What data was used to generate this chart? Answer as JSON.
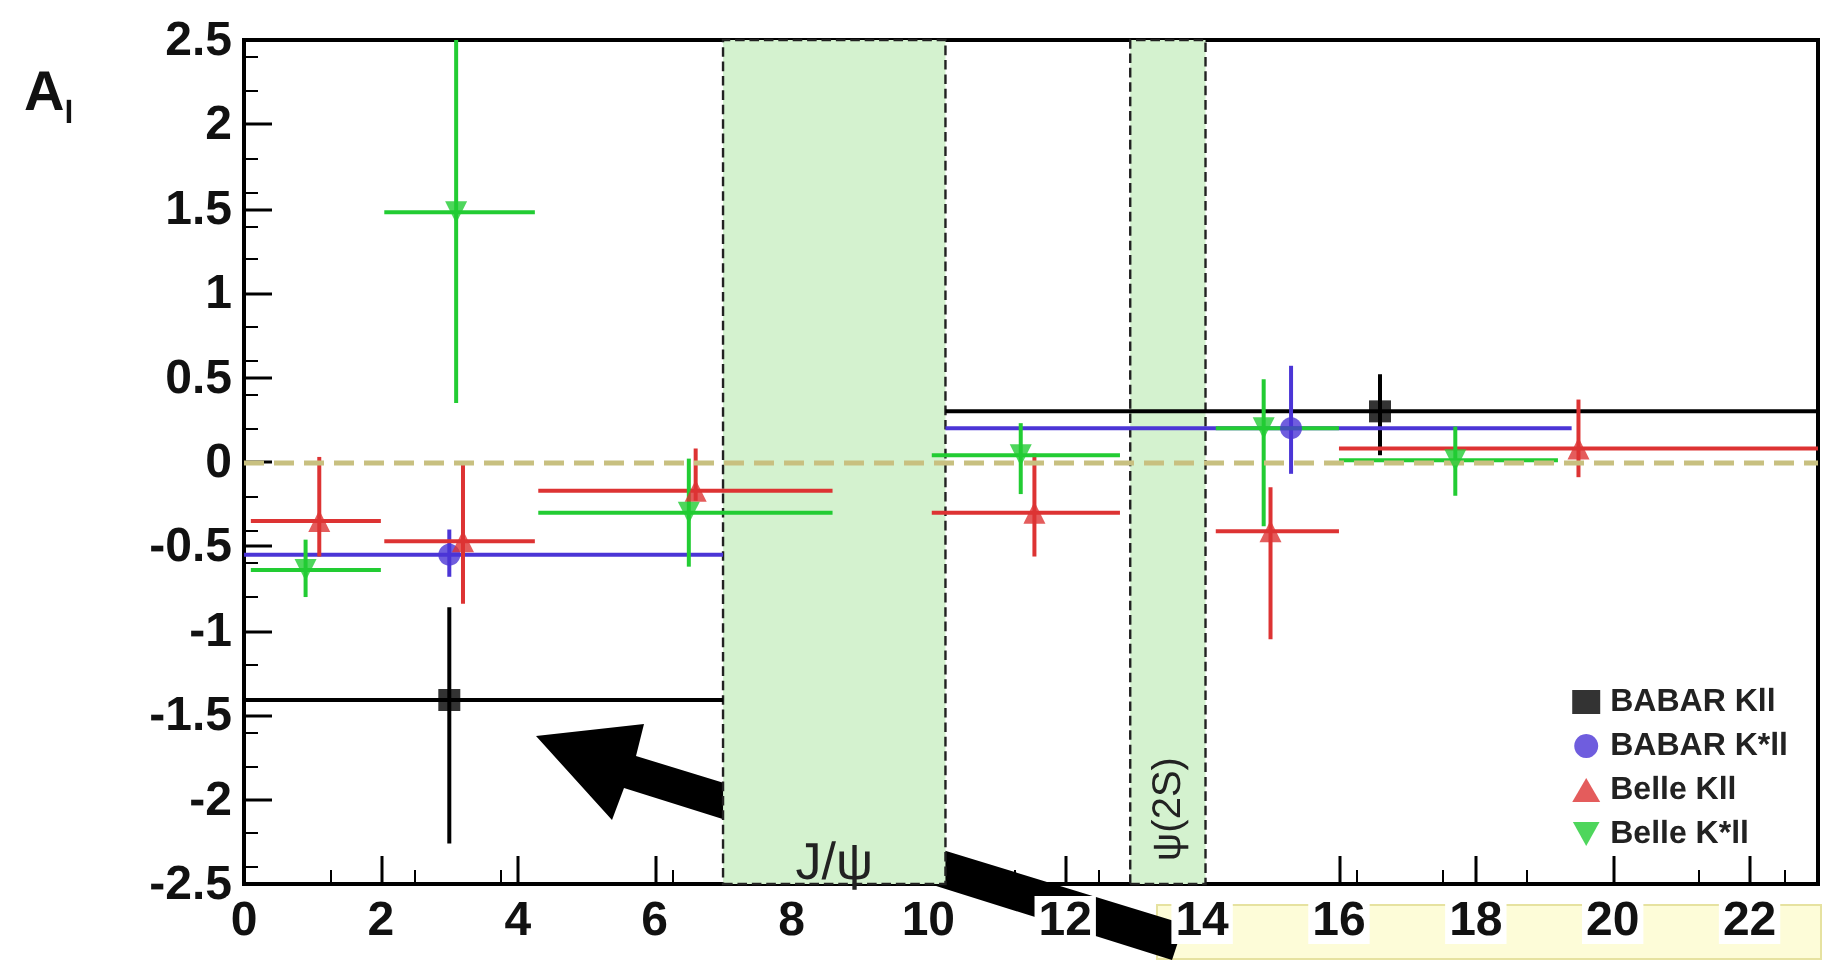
{
  "chart_data": {
    "type": "scatter",
    "ylabel": "A$_{l}$",
    "xlim": [
      0,
      23
    ],
    "xticks": [
      0,
      2,
      4,
      6,
      8,
      10,
      12,
      14,
      16,
      18,
      20,
      22
    ],
    "ylim": [
      -2.5,
      2.5
    ],
    "yticks": [
      -2.5,
      -2,
      -1.5,
      -1,
      -0.5,
      0,
      0.5,
      1,
      1.5,
      2,
      2.5
    ],
    "grid": false,
    "legend": "bottom right",
    "series": [
      {
        "name": "BABAR Kll",
        "color": "#000000",
        "marker": "square",
        "x": [
          3.0,
          16.6
        ],
        "values": [
          -1.41,
          0.3
        ],
        "errors": [
          [
            -2.26,
            -0.86
          ],
          [
            0.04,
            0.52
          ]
        ],
        "xerrors": [
          [
            0,
            7
          ],
          [
            10.25,
            23
          ]
        ]
      },
      {
        "name": "BABAR K*ll",
        "color": "#4b35d6",
        "marker": "circle",
        "x": [
          3.0,
          15.3
        ],
        "values": [
          -0.55,
          0.2
        ],
        "errors": [
          [
            -0.68,
            -0.4
          ],
          [
            -0.07,
            0.57
          ]
        ],
        "xerrors": [
          [
            0,
            7
          ],
          [
            10.25,
            19.4
          ]
        ]
      },
      {
        "name": "Belle Kll",
        "color": "#dd3333",
        "marker": "triangle",
        "x": [
          1.1,
          3.2,
          6.6,
          11.55,
          15.0,
          19.5
        ],
        "values": [
          -0.35,
          -0.47,
          -0.17,
          -0.3,
          -0.41,
          0.08
        ],
        "errors": [
          [
            -0.56,
            0.03
          ],
          [
            -0.84,
            0
          ],
          [
            -0.23,
            0.08
          ],
          [
            -0.56,
            0.05
          ],
          [
            -1.05,
            -0.15
          ],
          [
            -0.09,
            0.37
          ]
        ],
        "xerrors": [
          [
            0.1,
            2.0
          ],
          [
            2.05,
            4.25
          ],
          [
            4.3,
            8.6
          ],
          [
            10.05,
            12.8
          ],
          [
            14.2,
            16.0
          ],
          [
            16.0,
            23
          ]
        ]
      },
      {
        "name": "Belle K*ll",
        "color": "#22cc33",
        "marker": "triangle-down",
        "x": [
          0.9,
          3.1,
          6.5,
          11.35,
          14.9,
          17.7
        ],
        "values": [
          -0.64,
          1.48,
          -0.3,
          0.04,
          0.2,
          0.01
        ],
        "errors": [
          [
            -0.8,
            -0.46
          ],
          [
            0.35,
            2.5
          ],
          [
            -0.62,
            0.02
          ],
          [
            -0.19,
            0.23
          ],
          [
            -0.38,
            0.49
          ],
          [
            -0.2,
            0.21
          ]
        ],
        "xerrors": [
          [
            0.1,
            2.0
          ],
          [
            2.05,
            4.25
          ],
          [
            4.3,
            8.6
          ],
          [
            10.05,
            12.8
          ],
          [
            14.2,
            16.0
          ],
          [
            16.0,
            19.2
          ]
        ]
      }
    ],
    "ref_lines": [
      {
        "axis": "y",
        "value": 0,
        "color": "#c8c080",
        "line_style": "dashed"
      }
    ],
    "bands": [
      {
        "axis": "x",
        "from": 7.0,
        "to": 10.25,
        "label": "J/ψ",
        "color": "#d4f2cf"
      },
      {
        "axis": "x",
        "from": 12.95,
        "to": 14.05,
        "label": "ψ(2S)",
        "color": "#d4f2cf"
      }
    ]
  }
}
